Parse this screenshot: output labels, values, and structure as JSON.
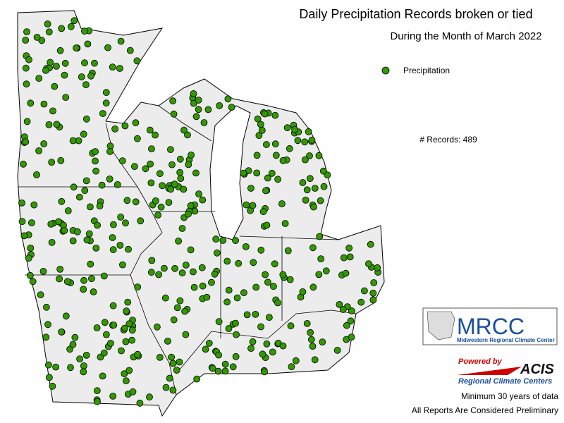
{
  "header": {
    "title": "Daily Precipitation Records broken or tied",
    "subtitle": "During the Month of March 2022"
  },
  "legend": {
    "label": "Precipitation"
  },
  "records": "# Records: 489",
  "logo_mrcc": {
    "name": "MRCC",
    "full_name": "Midwestern Regional Climate Center"
  },
  "logo_acis": {
    "powered": "Powered by",
    "name": "ACIS",
    "subtitle": "Regional Climate Centers"
  },
  "notes": [
    "Minimum 30 years of data",
    "All Reports Are Considered Preliminary"
  ]
}
